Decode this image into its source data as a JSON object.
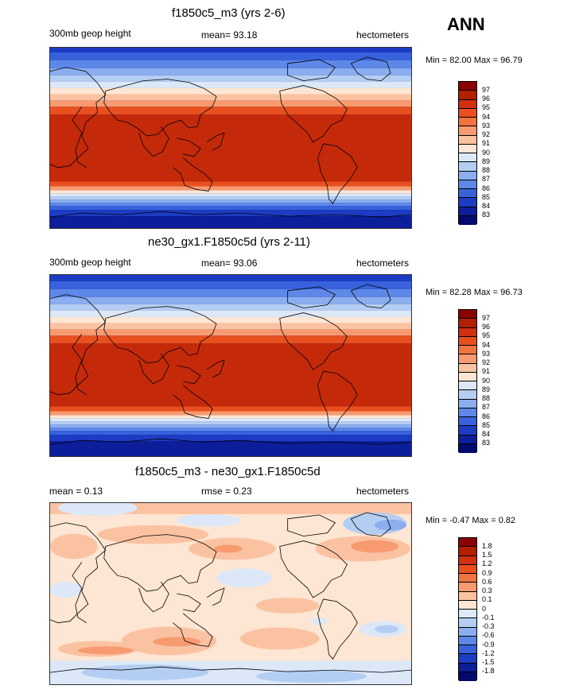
{
  "season": "ANN",
  "panels": [
    {
      "title": "f1850c5_m3 (yrs 2-6)",
      "left_label": "300mb geop height",
      "center_label": "mean=  93.18",
      "units": "hectometers",
      "minmax": "Min =  82.00 Max =  96.79",
      "colorbar_labels": [
        "97",
        "96",
        "95",
        "94",
        "93",
        "92",
        "91",
        "90",
        "89",
        "88",
        "87",
        "86",
        "85",
        "84",
        "83"
      ]
    },
    {
      "title": "ne30_gx1.F1850c5d (yrs 2-11)",
      "left_label": "300mb geop height",
      "center_label": "mean=  93.06",
      "units": "hectometers",
      "minmax": "Min =  82.28 Max =  96.73",
      "colorbar_labels": [
        "97",
        "96",
        "95",
        "94",
        "93",
        "92",
        "91",
        "90",
        "89",
        "88",
        "87",
        "86",
        "85",
        "84",
        "83"
      ]
    },
    {
      "title": "f1850c5_m3 - ne30_gx1.F1850c5d",
      "left_label": "mean =   0.13",
      "center_label": "rmse =   0.23",
      "units": "hectometers",
      "minmax": "Min =  -0.47 Max =   0.82",
      "colorbar_labels": [
        "1.8",
        "1.5",
        "1.2",
        "0.9",
        "0.6",
        "0.3",
        "0.1",
        "0",
        "-0.1",
        "-0.3",
        "-0.6",
        "-0.9",
        "-1.2",
        "-1.5",
        "-1.8"
      ]
    }
  ],
  "colors": {
    "colorbar": [
      "#8b0000",
      "#b32000",
      "#d03010",
      "#e8501f",
      "#f2733f",
      "#f89a70",
      "#fbc2a2",
      "#fde6d3",
      "#dce8f8",
      "#b4cdf2",
      "#8aaef0",
      "#5e88e8",
      "#3862dc",
      "#1d3cc4",
      "#0c1e9a",
      "#050a70"
    ]
  }
}
